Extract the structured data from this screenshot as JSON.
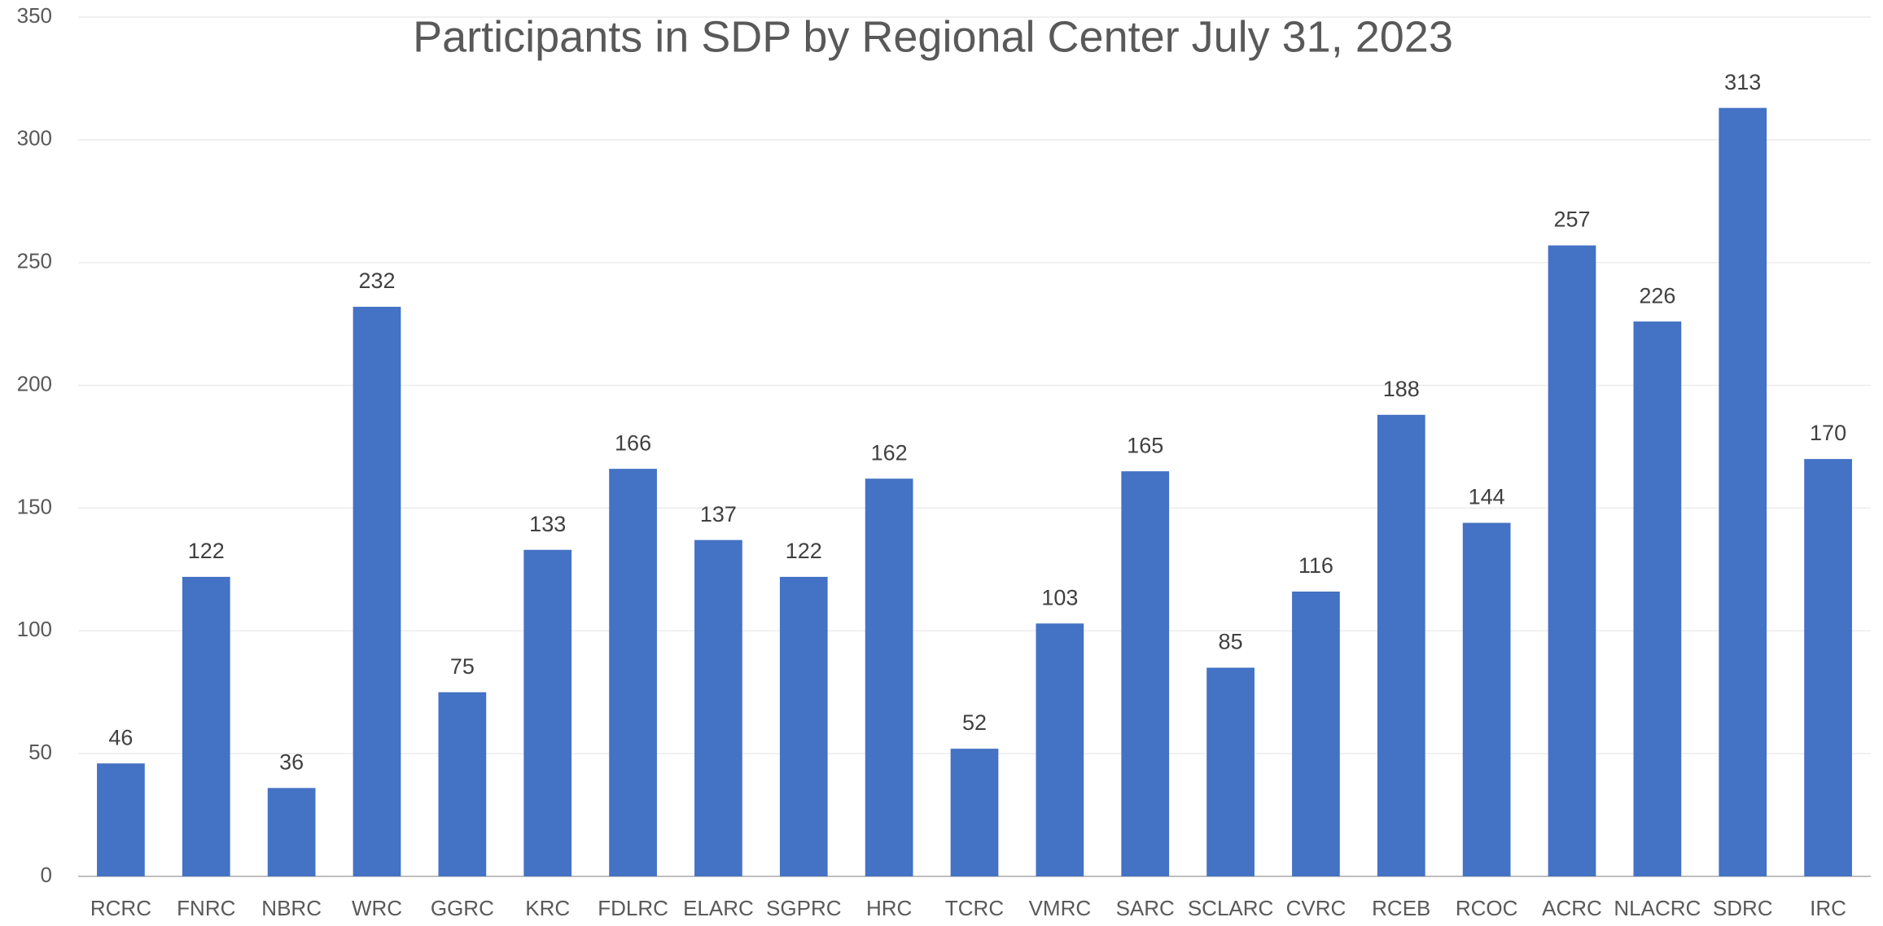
{
  "chart_data": {
    "type": "bar",
    "title": "Participants in SDP by Regional Center July 31, 2023",
    "categories": [
      "RCRC",
      "FNRC",
      "NBRC",
      "WRC",
      "GGRC",
      "KRC",
      "FDLRC",
      "ELARC",
      "SGPRC",
      "HRC",
      "TCRC",
      "VMRC",
      "SARC",
      "SCLARC",
      "CVRC",
      "RCEB",
      "RCOC",
      "ACRC",
      "NLACRC",
      "SDRC",
      "IRC"
    ],
    "values": [
      46,
      122,
      36,
      232,
      75,
      133,
      166,
      137,
      122,
      162,
      52,
      103,
      165,
      85,
      116,
      188,
      144,
      257,
      226,
      313,
      170
    ],
    "color": "#4472c4",
    "ylim": [
      0,
      350
    ],
    "yticks": [
      0,
      50,
      100,
      150,
      200,
      250,
      300,
      350
    ],
    "grid": true
  }
}
